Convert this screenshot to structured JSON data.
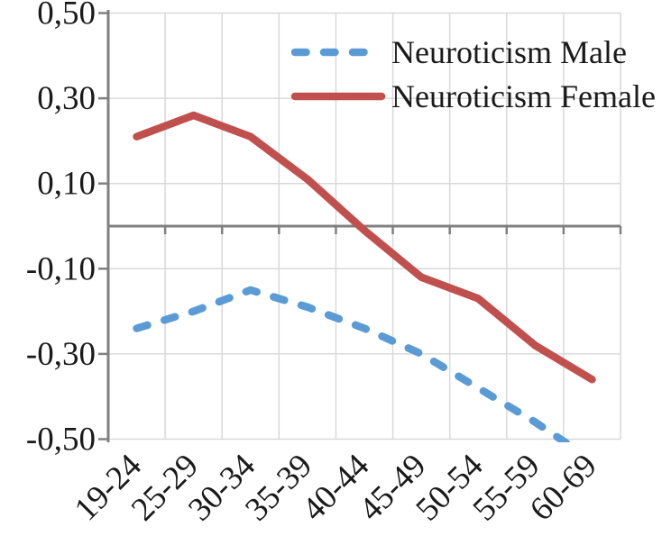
{
  "chart_data": {
    "type": "line",
    "title": "",
    "xlabel": "",
    "ylabel": "",
    "categories": [
      "19-24",
      "25-29",
      "30-34",
      "35-39",
      "40-44",
      "45-49",
      "50-54",
      "55-59",
      "60-69"
    ],
    "series": [
      {
        "name": "Neuroticism Male",
        "values": [
          -0.24,
          -0.2,
          -0.15,
          -0.19,
          -0.24,
          -0.3,
          -0.38,
          -0.46,
          -0.55
        ],
        "color": "#5b9bd5",
        "line_style": "dashed"
      },
      {
        "name": "Neuroticism Female",
        "values": [
          0.21,
          0.26,
          0.21,
          0.11,
          -0.01,
          -0.12,
          -0.17,
          -0.28,
          -0.36
        ],
        "color": "#c0504d",
        "line_style": "solid"
      }
    ],
    "ylim": [
      -0.5,
      0.5
    ],
    "yticks": [
      0.5,
      0.3,
      0.1,
      -0.1,
      -0.3,
      -0.5
    ],
    "ytick_labels": [
      "0,50",
      "0,30",
      "0,10",
      "-0,10",
      "-0,30",
      "-0,50"
    ],
    "decimal_separator": ",",
    "grid": true,
    "legend_position": "top-right",
    "grid_color": "#d9d9d9",
    "axis_color": "#808080",
    "text_color": "#1a1a1a",
    "background_color": "#ffffff"
  }
}
